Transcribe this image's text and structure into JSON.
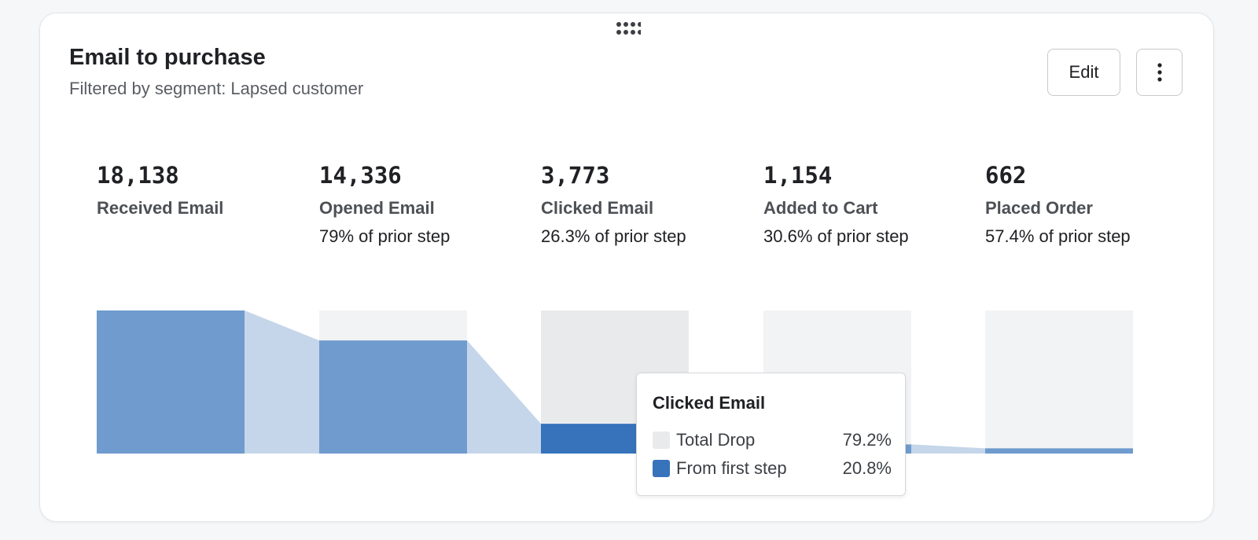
{
  "card": {
    "title": "Email to purchase",
    "subtitle": "Filtered by segment: Lapsed customer",
    "edit_label": "Edit",
    "drag_icon": "drag-handle-icon",
    "more_icon": "more-vertical-icon"
  },
  "steps": [
    {
      "value": "18,138",
      "name": "Received Email",
      "rate": ""
    },
    {
      "value": "14,336",
      "name": "Opened Email",
      "rate": "79% of prior step"
    },
    {
      "value": "3,773",
      "name": "Clicked Email",
      "rate": "26.3% of prior step"
    },
    {
      "value": "1,154",
      "name": "Added to Cart",
      "rate": "30.6% of prior step"
    },
    {
      "value": "662",
      "name": "Placed Order",
      "rate": "57.4% of prior step"
    }
  ],
  "tooltip": {
    "title": "Clicked Email",
    "rows": [
      {
        "label": "Total Drop",
        "value": "79.2%"
      },
      {
        "label": "From first step",
        "value": "20.8%"
      }
    ]
  },
  "colors": {
    "bar": "#6f9bce",
    "bar_highlight": "#3673bb",
    "connector": "#c5d6ea",
    "track": "#f2f3f5",
    "track_highlight": "#e9eaec",
    "drop_swatch": "#e9eaec"
  },
  "chart_data": {
    "type": "funnel",
    "categories": [
      "Received Email",
      "Opened Email",
      "Clicked Email",
      "Added to Cart",
      "Placed Order"
    ],
    "values": [
      18138,
      14336,
      3773,
      1154,
      662
    ],
    "highlighted_step": "Clicked Email"
  }
}
